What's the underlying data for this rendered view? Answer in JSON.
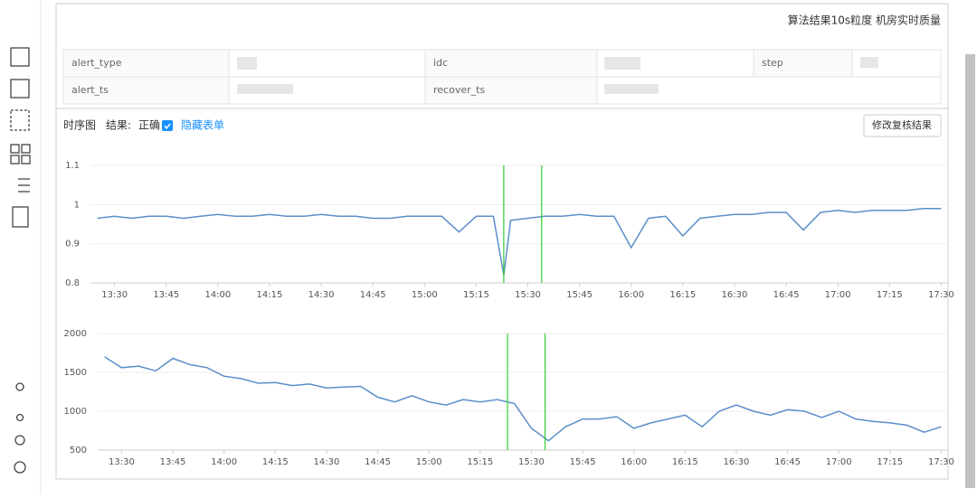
{
  "header": {
    "title": "算法结果10s粒度 机房实时质量"
  },
  "info_table": {
    "rows": [
      [
        "alert_type",
        "idc",
        "step"
      ],
      [
        "alert_ts",
        "recover_ts"
      ]
    ]
  },
  "toolbar": {
    "view": "时序图",
    "result_label": "结果:",
    "result_value": "正确",
    "toggle": "隐藏表单",
    "button": "修改复核结果"
  },
  "chart_data": [
    {
      "type": "line",
      "color": "#5b8fc9",
      "marker_color": "#33cc33",
      "markers": [
        "15:23",
        "15:34"
      ],
      "x": [
        "13:25",
        "13:30",
        "13:35",
        "13:40",
        "13:45",
        "13:50",
        "13:55",
        "14:00",
        "14:05",
        "14:10",
        "14:15",
        "14:20",
        "14:25",
        "14:30",
        "14:35",
        "14:40",
        "14:45",
        "14:50",
        "14:55",
        "15:00",
        "15:05",
        "15:10",
        "15:15",
        "15:20",
        "15:23",
        "15:25",
        "15:30",
        "15:35",
        "15:40",
        "15:45",
        "15:50",
        "15:55",
        "16:00",
        "16:05",
        "16:10",
        "16:15",
        "16:20",
        "16:25",
        "16:30",
        "16:35",
        "16:40",
        "16:45",
        "16:50",
        "16:55",
        "17:00",
        "17:05",
        "17:10",
        "17:15",
        "17:20",
        "17:25",
        "17:30"
      ],
      "values": [
        0.965,
        0.97,
        0.965,
        0.97,
        0.97,
        0.965,
        0.97,
        0.975,
        0.97,
        0.97,
        0.975,
        0.97,
        0.97,
        0.975,
        0.97,
        0.97,
        0.965,
        0.965,
        0.97,
        0.97,
        0.97,
        0.93,
        0.97,
        0.97,
        0.82,
        0.96,
        0.965,
        0.97,
        0.97,
        0.975,
        0.97,
        0.97,
        0.89,
        0.965,
        0.97,
        0.92,
        0.965,
        0.97,
        0.975,
        0.975,
        0.98,
        0.98,
        0.935,
        0.98,
        0.985,
        0.98,
        0.985,
        0.985,
        0.985,
        0.99,
        0.99
      ],
      "xlim": [
        "13:23",
        "17:32"
      ],
      "xticks": [
        "13:30",
        "13:45",
        "14:00",
        "14:15",
        "14:30",
        "14:45",
        "15:00",
        "15:15",
        "15:30",
        "15:45",
        "16:00",
        "16:15",
        "16:30",
        "16:45",
        "17:00",
        "17:15",
        "17:30"
      ],
      "ylim": [
        0.8,
        1.1
      ],
      "yticks": [
        0.8,
        0.9,
        1,
        1.1
      ],
      "grid": true
    },
    {
      "type": "line",
      "color": "#5b8fc9",
      "marker_color": "#33cc33",
      "markers": [
        "15:23",
        "15:34"
      ],
      "x": [
        "13:25",
        "13:30",
        "13:35",
        "13:40",
        "13:45",
        "13:50",
        "13:55",
        "14:00",
        "14:05",
        "14:10",
        "14:15",
        "14:20",
        "14:25",
        "14:30",
        "14:35",
        "14:40",
        "14:45",
        "14:50",
        "14:55",
        "15:00",
        "15:05",
        "15:10",
        "15:15",
        "15:20",
        "15:25",
        "15:30",
        "15:35",
        "15:40",
        "15:45",
        "15:50",
        "15:55",
        "16:00",
        "16:05",
        "16:10",
        "16:15",
        "16:20",
        "16:25",
        "16:30",
        "16:35",
        "16:40",
        "16:45",
        "16:50",
        "16:55",
        "17:00",
        "17:05",
        "17:10",
        "17:15",
        "17:20",
        "17:25",
        "17:30"
      ],
      "values": [
        1700,
        1560,
        1580,
        1520,
        1680,
        1600,
        1560,
        1450,
        1420,
        1360,
        1370,
        1330,
        1350,
        1300,
        1310,
        1320,
        1180,
        1120,
        1200,
        1120,
        1080,
        1150,
        1120,
        1150,
        1100,
        780,
        620,
        800,
        900,
        900,
        930,
        780,
        850,
        900,
        950,
        800,
        1000,
        1080,
        1000,
        950,
        1020,
        1000,
        920,
        1000,
        900,
        870,
        850,
        820,
        730,
        800
      ],
      "xlim": [
        "13:23",
        "17:32"
      ],
      "xticks": [
        "13:30",
        "13:45",
        "14:00",
        "14:15",
        "14:30",
        "14:45",
        "15:00",
        "15:15",
        "15:30",
        "15:45",
        "16:00",
        "16:15",
        "16:30",
        "16:45",
        "17:00",
        "17:15",
        "17:30"
      ],
      "ylim": [
        500,
        2000
      ],
      "yticks": [
        500,
        1000,
        1500,
        2000
      ],
      "grid": true
    }
  ]
}
